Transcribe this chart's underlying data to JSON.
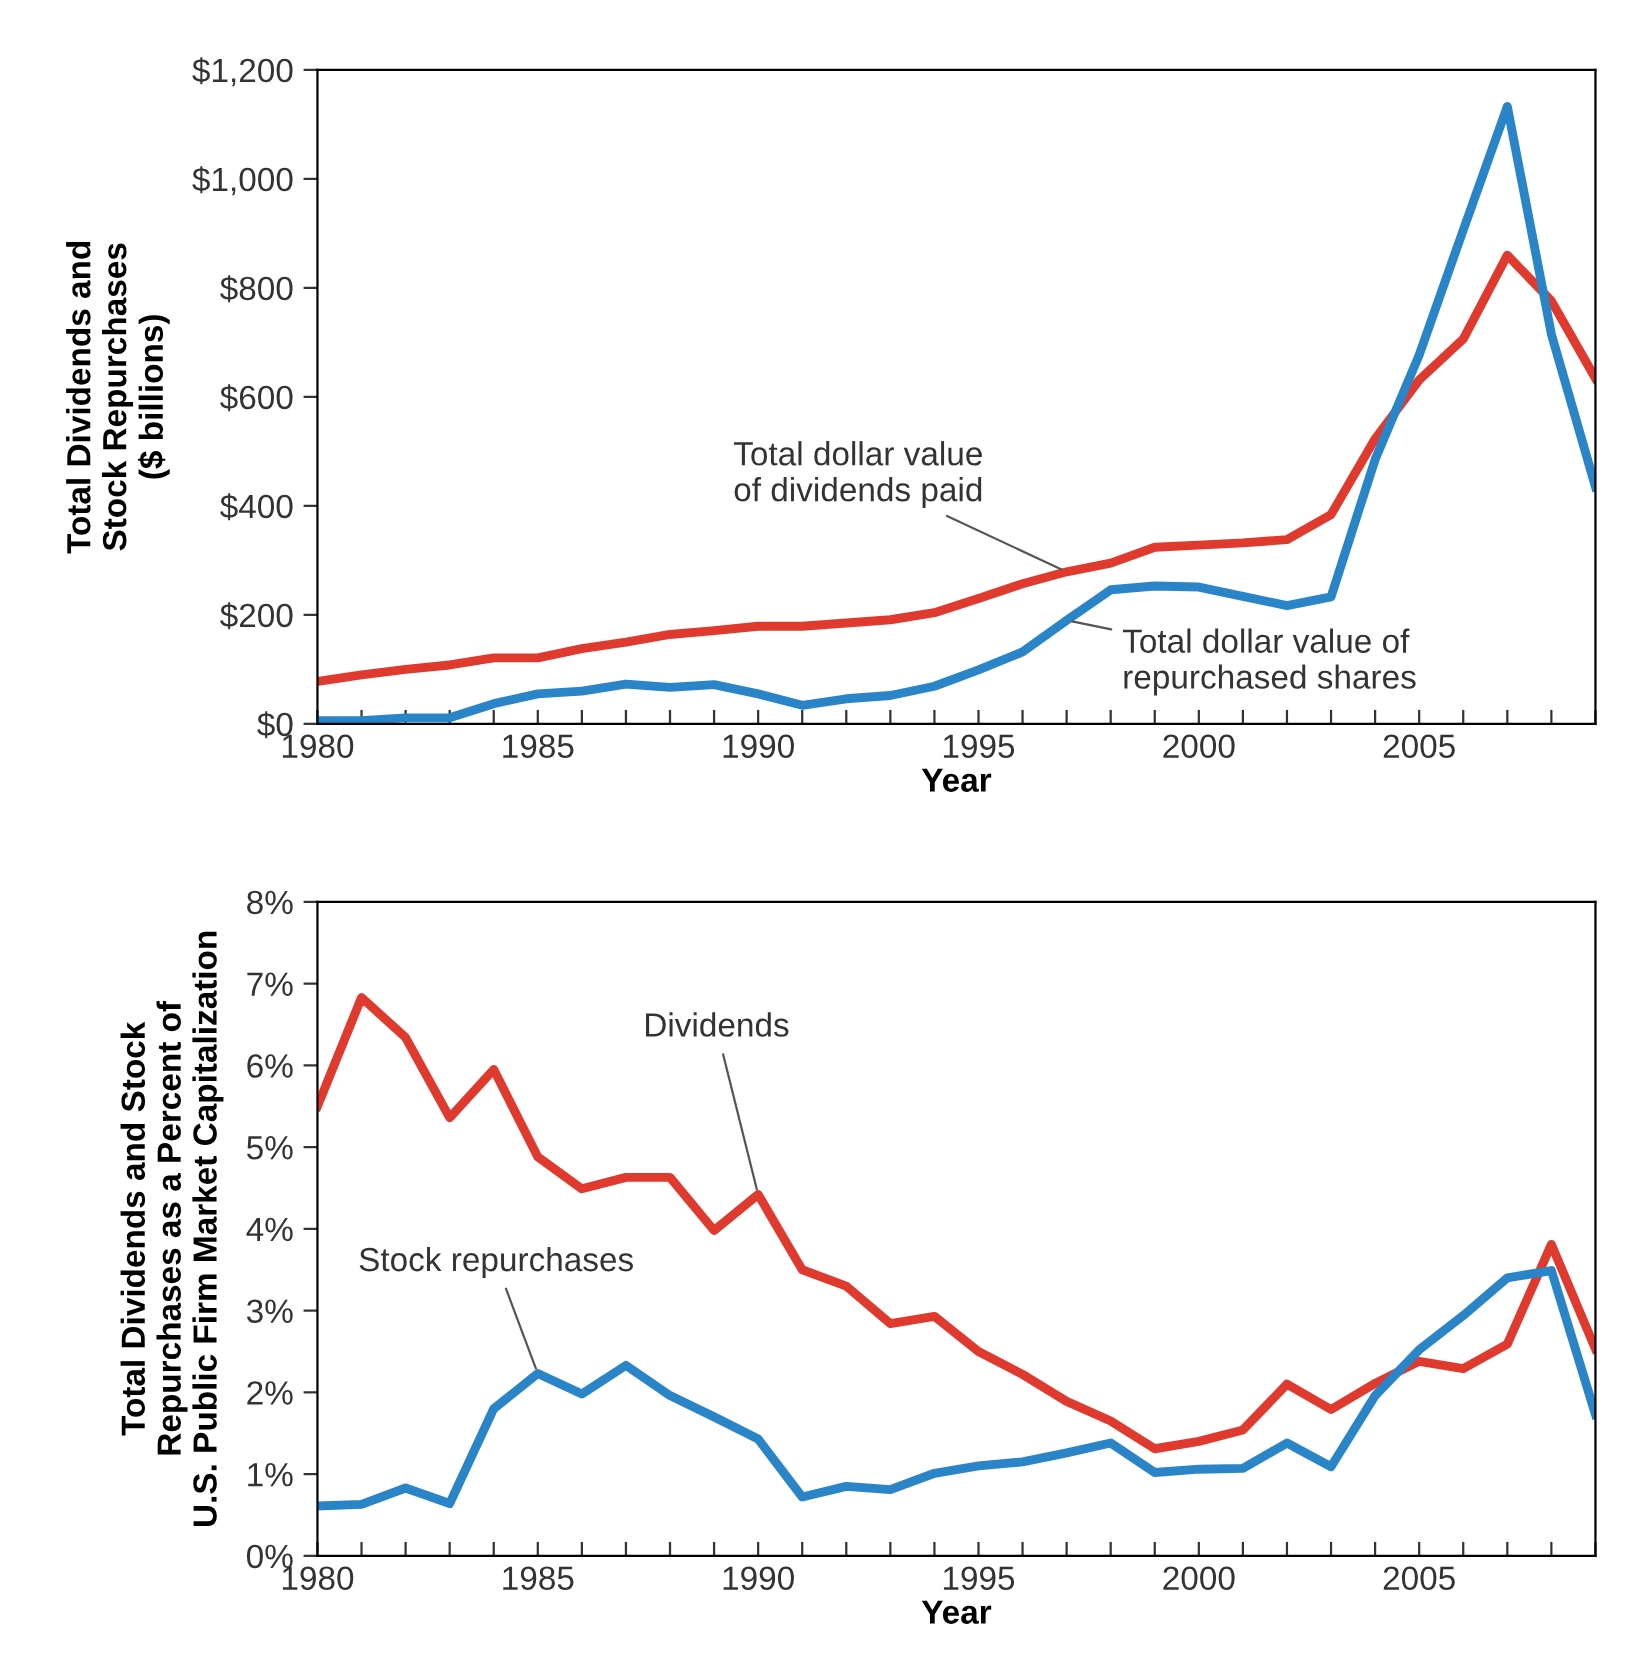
{
  "chart_data": [
    {
      "type": "line",
      "xlabel": "Year",
      "ylabel": "Total Dividends and\nStock Repurchases\n($ billions)",
      "x": [
        1980,
        1981,
        1982,
        1983,
        1984,
        1985,
        1986,
        1987,
        1988,
        1989,
        1990,
        1991,
        1992,
        1993,
        1994,
        1995,
        1996,
        1997,
        1998,
        1999,
        2000,
        2001,
        2002,
        2003,
        2004,
        2005,
        2006,
        2007,
        2008,
        2009
      ],
      "series": [
        {
          "color": "#e03a2f",
          "values": [
            78,
            90,
            100,
            108,
            121,
            121,
            138,
            150,
            164,
            171,
            179,
            179,
            185,
            191,
            204,
            230,
            257,
            279,
            295,
            324,
            328,
            332,
            338,
            384,
            523,
            631,
            706,
            860,
            776,
            634
          ]
        },
        {
          "color": "#2a85c8",
          "values": [
            6,
            6,
            11,
            11,
            37,
            55,
            60,
            73,
            67,
            72,
            55,
            34,
            46,
            52,
            69,
            99,
            132,
            190,
            246,
            253,
            251,
            234,
            217,
            233,
            485,
            677,
            906,
            1133,
            715,
            435
          ]
        }
      ],
      "xlim": [
        1980,
        2009
      ],
      "xticks": [
        1980,
        {
          "value": 1981,
          "label": null
        },
        {
          "value": 1982,
          "label": null
        },
        {
          "value": 1983,
          "label": null
        },
        {
          "value": 1984,
          "label": null
        },
        1985,
        {
          "value": 1986,
          "label": null
        },
        {
          "value": 1987,
          "label": null
        },
        {
          "value": 1988,
          "label": null
        },
        {
          "value": 1989,
          "label": null
        },
        1990,
        {
          "value": 1991,
          "label": null
        },
        {
          "value": 1992,
          "label": null
        },
        {
          "value": 1993,
          "label": null
        },
        {
          "value": 1994,
          "label": null
        },
        1995,
        {
          "value": 1996,
          "label": null
        },
        {
          "value": 1997,
          "label": null
        },
        {
          "value": 1998,
          "label": null
        },
        {
          "value": 1999,
          "label": null
        },
        2000,
        {
          "value": 2001,
          "label": null
        },
        {
          "value": 2002,
          "label": null
        },
        {
          "value": 2003,
          "label": null
        },
        {
          "value": 2004,
          "label": null
        },
        2005,
        {
          "value": 2006,
          "label": null
        },
        {
          "value": 2007,
          "label": null
        },
        {
          "value": 2008,
          "label": null
        },
        {
          "value": 2009,
          "label": null
        }
      ],
      "ylim": [
        0,
        1200
      ],
      "yticks": [
        {
          "value": 0,
          "label": "$0"
        },
        {
          "value": 200,
          "label": "$200"
        },
        {
          "value": 400,
          "label": "$400"
        },
        {
          "value": 600,
          "label": "$600"
        },
        {
          "value": 800,
          "label": "$800"
        },
        {
          "value": 1000,
          "label": "$1,000"
        },
        {
          "value": 1200,
          "label": "$1,200"
        }
      ],
      "annotations": [
        {
          "text": "Total dollar value\nof dividends paid",
          "x": 1997,
          "y": 279
        },
        {
          "text": "Total dollar value of\nrepurchased shares",
          "x": 1997,
          "y": 190
        }
      ],
      "grid": false,
      "legend": false
    },
    {
      "type": "line",
      "xlabel": "Year",
      "ylabel": "Total Dividends and Stock\nRepurchases as a Percent of\nU.S. Public Firm Market Capitalization",
      "x": [
        1980,
        1981,
        1982,
        1983,
        1984,
        1985,
        1986,
        1987,
        1988,
        1989,
        1990,
        1991,
        1992,
        1993,
        1994,
        1995,
        1996,
        1997,
        1998,
        1999,
        2000,
        2001,
        2002,
        2003,
        2004,
        2005,
        2006,
        2007,
        2008,
        2009
      ],
      "series": [
        {
          "color": "#e03a2f",
          "values": [
            5.5,
            6.83,
            6.34,
            5.36,
            5.95,
            4.88,
            4.49,
            4.63,
            4.63,
            3.98,
            4.42,
            3.5,
            3.3,
            2.84,
            2.93,
            2.5,
            2.22,
            1.89,
            1.65,
            1.31,
            1.4,
            1.54,
            2.1,
            1.79,
            2.11,
            2.38,
            2.29,
            2.59,
            3.81,
            2.53
          ]
        },
        {
          "color": "#2a85c8",
          "values": [
            0.61,
            0.63,
            0.83,
            0.64,
            1.8,
            2.23,
            1.98,
            2.33,
            1.96,
            1.7,
            1.43,
            0.72,
            0.85,
            0.81,
            1.01,
            1.1,
            1.15,
            1.26,
            1.38,
            1.02,
            1.06,
            1.07,
            1.38,
            1.09,
            1.96,
            2.52,
            2.94,
            3.4,
            3.49,
            1.73
          ]
        }
      ],
      "xlim": [
        1980,
        2009
      ],
      "xticks": [
        1980,
        {
          "value": 1981,
          "label": null
        },
        {
          "value": 1982,
          "label": null
        },
        {
          "value": 1983,
          "label": null
        },
        {
          "value": 1984,
          "label": null
        },
        1985,
        {
          "value": 1986,
          "label": null
        },
        {
          "value": 1987,
          "label": null
        },
        {
          "value": 1988,
          "label": null
        },
        {
          "value": 1989,
          "label": null
        },
        1990,
        {
          "value": 1991,
          "label": null
        },
        {
          "value": 1992,
          "label": null
        },
        {
          "value": 1993,
          "label": null
        },
        {
          "value": 1994,
          "label": null
        },
        1995,
        {
          "value": 1996,
          "label": null
        },
        {
          "value": 1997,
          "label": null
        },
        {
          "value": 1998,
          "label": null
        },
        {
          "value": 1999,
          "label": null
        },
        2000,
        {
          "value": 2001,
          "label": null
        },
        {
          "value": 2002,
          "label": null
        },
        {
          "value": 2003,
          "label": null
        },
        {
          "value": 2004,
          "label": null
        },
        2005,
        {
          "value": 2006,
          "label": null
        },
        {
          "value": 2007,
          "label": null
        },
        {
          "value": 2008,
          "label": null
        },
        {
          "value": 2009,
          "label": null
        }
      ],
      "ylim": [
        0,
        8
      ],
      "yticks": [
        {
          "value": 0,
          "label": "0%"
        },
        {
          "value": 1,
          "label": "1%"
        },
        {
          "value": 2,
          "label": "2%"
        },
        {
          "value": 3,
          "label": "3%"
        },
        {
          "value": 4,
          "label": "4%"
        },
        {
          "value": 5,
          "label": "5%"
        },
        {
          "value": 6,
          "label": "6%"
        },
        {
          "value": 7,
          "label": "7%"
        },
        {
          "value": 8,
          "label": "8%"
        }
      ],
      "annotations": [
        {
          "text": "Dividends",
          "x": 1990,
          "y": 4.42
        },
        {
          "text": "Stock repurchases",
          "x": 1985,
          "y": 2.23
        }
      ],
      "grid": false,
      "legend": false
    }
  ]
}
